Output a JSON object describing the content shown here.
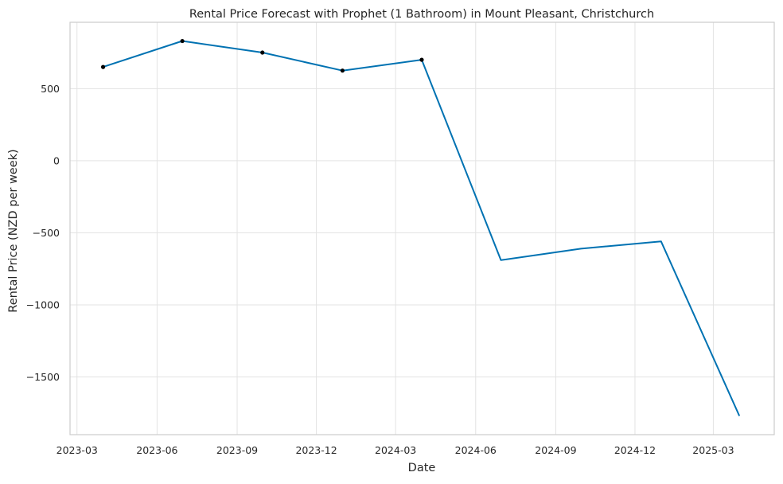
{
  "chart_data": {
    "type": "line",
    "title": "Rental Price Forecast with Prophet (1 Bathroom) in Mount Pleasant, Christchurch",
    "xlabel": "Date",
    "ylabel": "Rental Price (NZD per week)",
    "x_tick_labels": [
      "2023-03",
      "2023-06",
      "2023-09",
      "2023-12",
      "2024-03",
      "2024-06",
      "2024-09",
      "2024-12",
      "2025-03"
    ],
    "x_ticks": [
      "2023-03-01",
      "2023-06-01",
      "2023-09-01",
      "2023-12-01",
      "2024-03-01",
      "2024-06-01",
      "2024-09-01",
      "2024-12-01",
      "2025-03-01"
    ],
    "y_ticks": [
      500,
      0,
      -500,
      -1000,
      -1500
    ],
    "y_tick_labels": [
      "500",
      "0",
      "−500",
      "−1000",
      "−1500"
    ],
    "xlim": [
      "2023-02-21",
      "2025-05-10"
    ],
    "ylim": [
      -1900,
      960
    ],
    "grid": true,
    "series": [
      {
        "kind": "forecast-line",
        "color": "#0072b2",
        "x": [
          "2023-03-31",
          "2023-06-30",
          "2023-09-30",
          "2023-12-31",
          "2024-03-31",
          "2024-06-30",
          "2024-09-30",
          "2024-12-31",
          "2025-03-31"
        ],
        "values": [
          650,
          830,
          750,
          625,
          700,
          -690,
          -610,
          -560,
          -1770
        ]
      },
      {
        "kind": "observed-points",
        "color": "#000000",
        "x": [
          "2023-03-31",
          "2023-06-30",
          "2023-09-30",
          "2023-12-31",
          "2024-03-31"
        ],
        "values": [
          650,
          830,
          750,
          625,
          700
        ]
      }
    ]
  }
}
